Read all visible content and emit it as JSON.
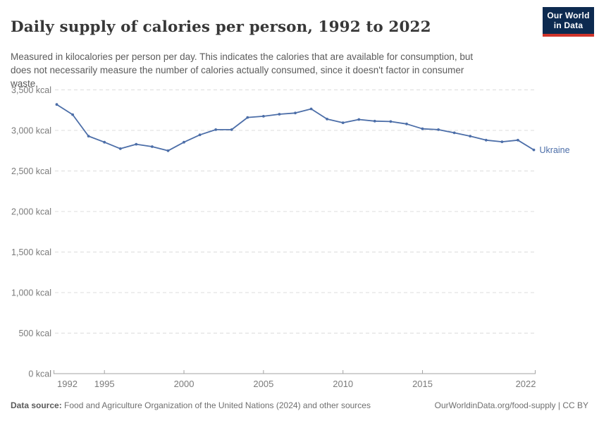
{
  "header": {
    "title": "Daily supply of calories per person, 1992 to 2022",
    "subtitle_lines": [
      "Measured in kilocalories per person per day. This indicates the calories that are available for consumption, but",
      "does not necessarily measure the number of calories actually consumed, since it doesn't factor in consumer",
      "waste."
    ],
    "logo": {
      "line1": "Our World",
      "line2": "in Data"
    }
  },
  "chart_data": {
    "type": "line",
    "title": "Daily supply of calories per person, 1992 to 2022",
    "ylabel": "",
    "xlabel": "",
    "unit": "kcal",
    "grid": "horizontal-dashed",
    "legend_position": "end-of-line-label",
    "x": [
      1992,
      1993,
      1994,
      1995,
      1996,
      1997,
      1998,
      1999,
      2000,
      2001,
      2002,
      2003,
      2004,
      2005,
      2006,
      2007,
      2008,
      2009,
      2010,
      2011,
      2012,
      2013,
      2014,
      2015,
      2016,
      2017,
      2018,
      2019,
      2020,
      2021,
      2022
    ],
    "series": [
      {
        "name": "Ukraine",
        "values": [
          3320,
          3195,
          2930,
          2855,
          2775,
          2830,
          2800,
          2750,
          2855,
          2945,
          3010,
          3010,
          3160,
          3175,
          3200,
          3215,
          3265,
          3140,
          3095,
          3135,
          3115,
          3110,
          3080,
          3020,
          3010,
          2970,
          2930,
          2880,
          2860,
          2880,
          2760
        ]
      }
    ],
    "ylim": [
      0,
      3500
    ],
    "yticks": [
      0,
      500,
      1000,
      1500,
      2000,
      2500,
      3000,
      3500
    ],
    "ytick_labels": [
      "0 kcal",
      "500 kcal",
      "1,000 kcal",
      "1,500 kcal",
      "2,000 kcal",
      "2,500 kcal",
      "3,000 kcal",
      "3,500 kcal"
    ],
    "xticks": [
      1992,
      1995,
      2000,
      2005,
      2010,
      2015,
      2022
    ],
    "xtick_labels": [
      "1992",
      "1995",
      "2000",
      "2005",
      "2010",
      "2015",
      "2022"
    ],
    "entity_label": "Ukraine"
  },
  "footer": {
    "datasource_label": "Data source:",
    "datasource_text": " Food and Agriculture Organization of the United Nations (2024) and other sources",
    "link_text": "OurWorldinData.org/food-supply | CC BY"
  },
  "colors": {
    "line": "#4C6EA8",
    "entity_label": "#4C6EA8",
    "gridline": "#dcdcdc",
    "axis": "#a3a3a3",
    "tick_text": "#7b7b7b",
    "logo_bg": "#0d2a50",
    "logo_bar": "#d0342a"
  }
}
